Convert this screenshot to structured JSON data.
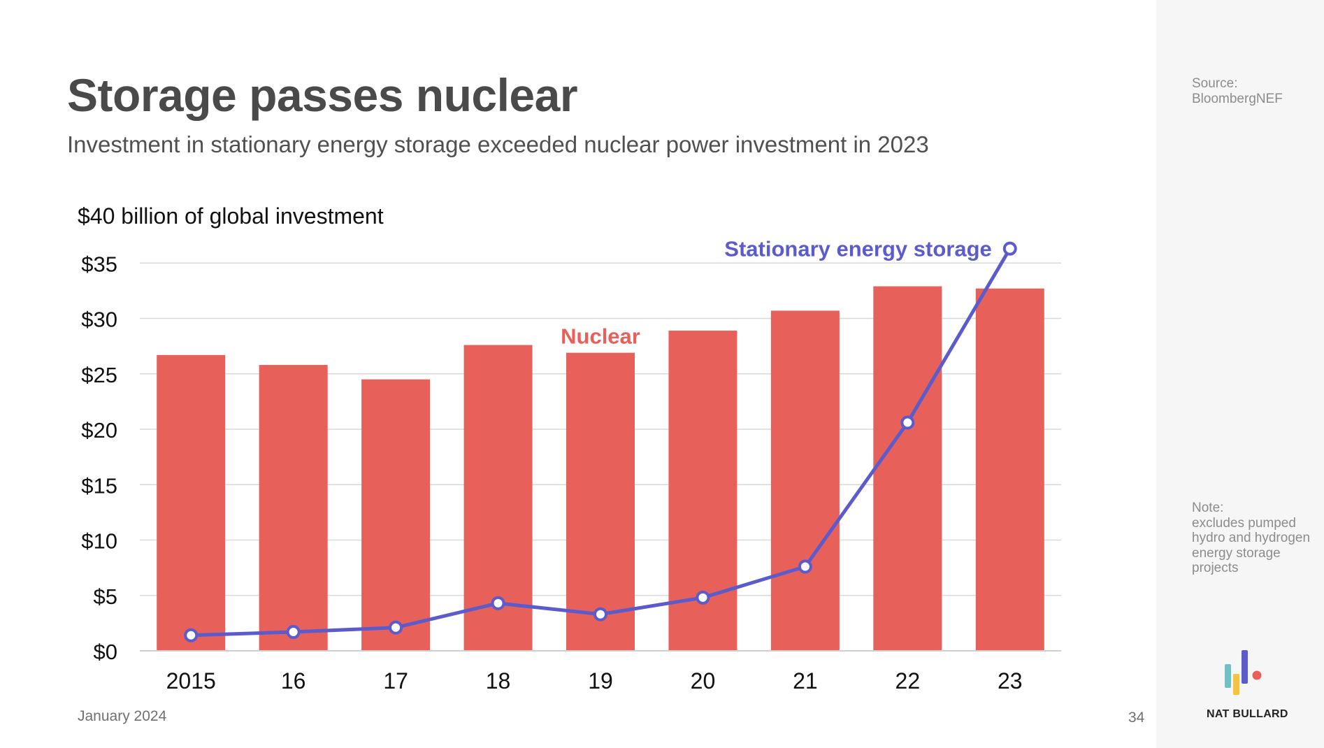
{
  "slide": {
    "title": "Storage passes nuclear",
    "subtitle": "Investment in stationary energy storage exceeded nuclear power investment in 2023",
    "date": "January 2024",
    "page_number": "34",
    "brand": "NAT BULLARD"
  },
  "sidebar": {
    "source_label": "Source:",
    "source": "BloombergNEF",
    "note_label": "Note:",
    "note": "excludes pumped hydro and hydrogen energy storage projects"
  },
  "colors": {
    "nuclear": "#e8605a",
    "storage": "#5b5bcc",
    "grid": "#d9d9d9",
    "logo_teal": "#6fc1c4",
    "logo_yellow": "#f5c242",
    "logo_blue": "#5b5bcc",
    "logo_red": "#e8605a"
  },
  "chart_data": {
    "type": "bar",
    "title": "",
    "ylabel": "$40 billion of global investment",
    "categories": [
      "2015",
      "16",
      "17",
      "18",
      "19",
      "20",
      "21",
      "22",
      "23"
    ],
    "ylim": [
      0,
      40
    ],
    "yticks": [
      {
        "value": 0,
        "label": "$0"
      },
      {
        "value": 5,
        "label": "$5"
      },
      {
        "value": 10,
        "label": "$10"
      },
      {
        "value": 15,
        "label": "$15"
      },
      {
        "value": 20,
        "label": "$20"
      },
      {
        "value": 25,
        "label": "$25"
      },
      {
        "value": 30,
        "label": "$30"
      },
      {
        "value": 35,
        "label": "$35"
      }
    ],
    "grid": true,
    "series": [
      {
        "name": "Nuclear",
        "type": "bar",
        "values": [
          26.7,
          25.8,
          24.5,
          27.6,
          26.9,
          28.9,
          30.7,
          32.9,
          32.7
        ]
      },
      {
        "name": "Stationary energy storage",
        "type": "line",
        "values": [
          1.4,
          1.7,
          2.1,
          4.3,
          3.3,
          4.8,
          7.6,
          20.6,
          36.3
        ]
      }
    ]
  }
}
